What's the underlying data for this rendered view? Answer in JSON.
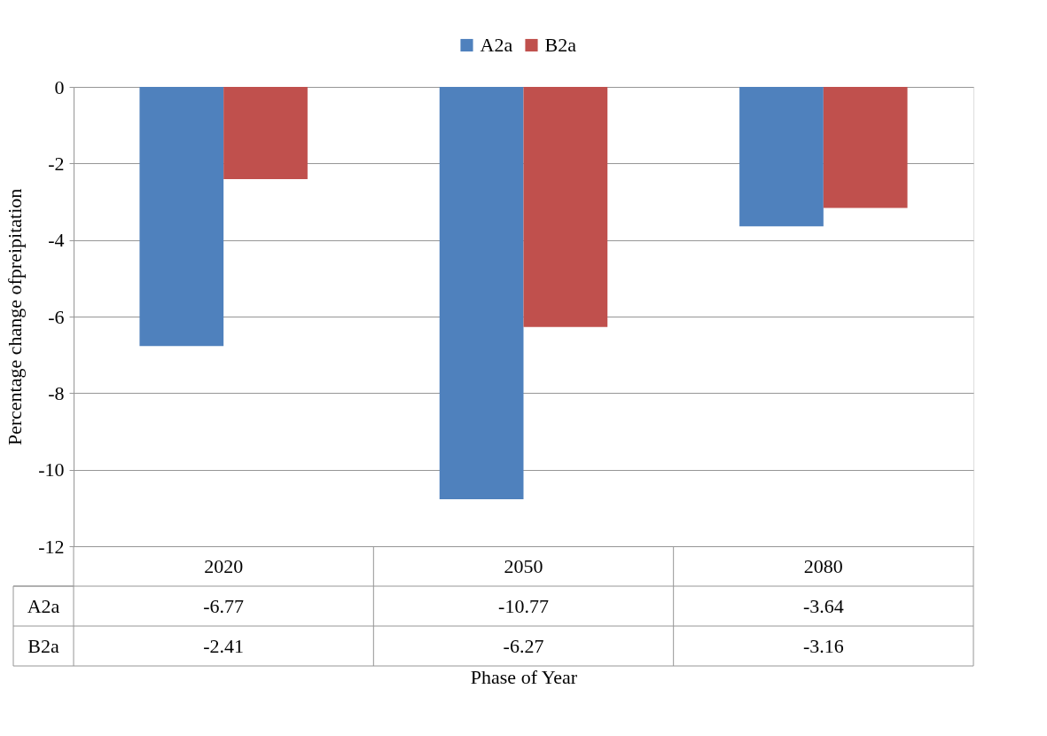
{
  "chart_data": {
    "type": "bar",
    "xlabel": "Phase of Year",
    "ylabel": "Percentage change ofpreipitation",
    "categories": [
      "2020",
      "2050",
      "2080"
    ],
    "series": [
      {
        "name": "A2a",
        "color": "#4f81bd",
        "values": [
          -6.77,
          -10.77,
          -3.64
        ]
      },
      {
        "name": "B2a",
        "color": "#c0504d",
        "values": [
          -2.41,
          -6.27,
          -3.16
        ]
      }
    ],
    "ylim": [
      -12,
      0
    ],
    "yticks": [
      0,
      -2,
      -4,
      -6,
      -8,
      -10,
      -12
    ],
    "grid": "y",
    "legend": "top",
    "data_labels": true
  }
}
